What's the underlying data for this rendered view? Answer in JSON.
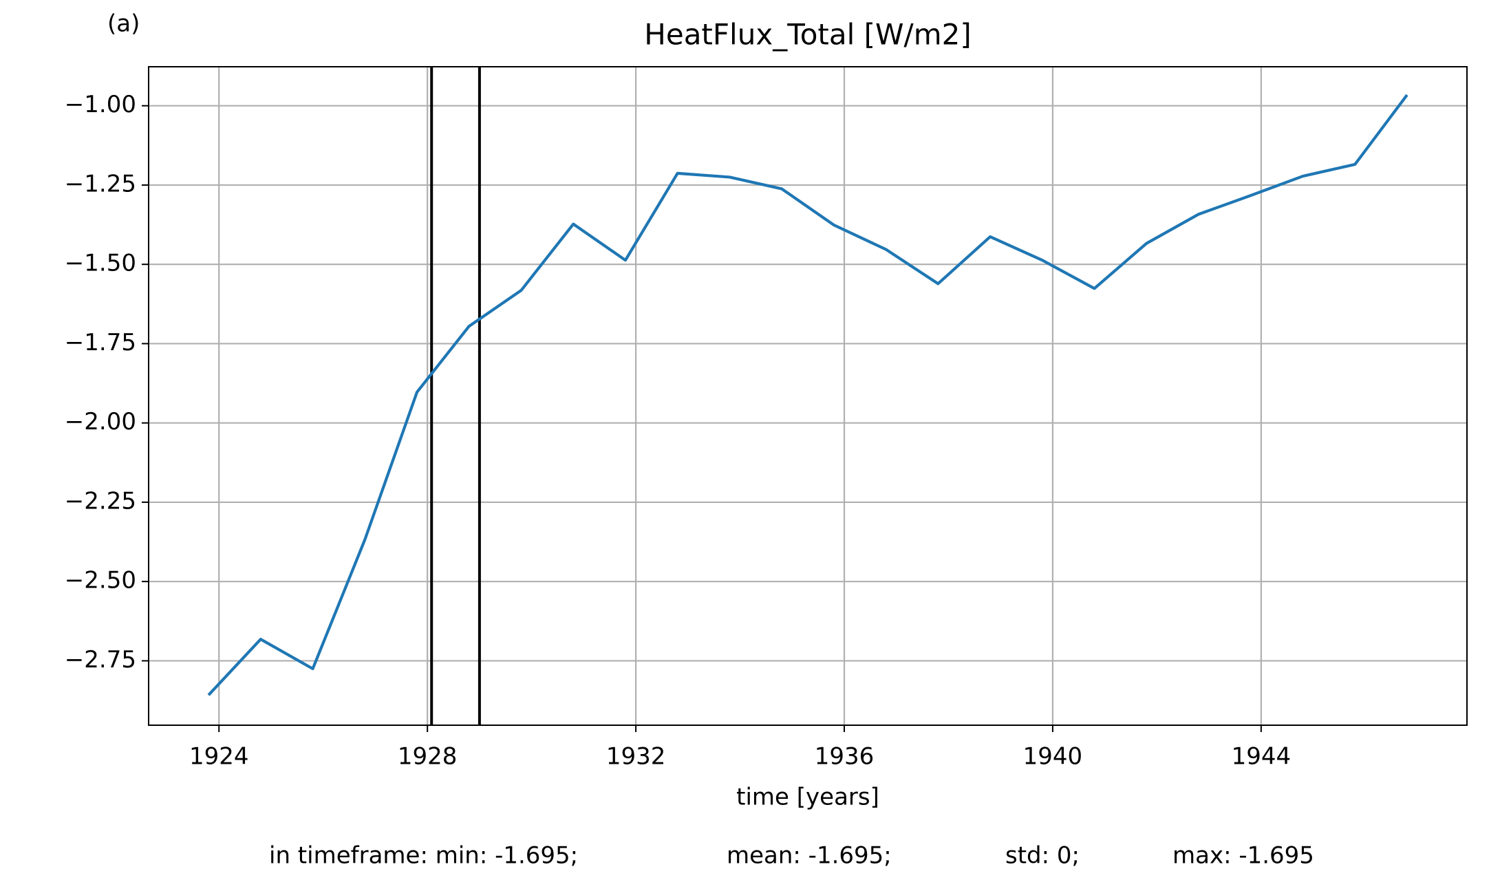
{
  "chart_data": {
    "type": "line",
    "title": "HeatFlux_Total [W/m2]",
    "panel_label": "(a)",
    "xlabel": "time [years]",
    "x": [
      1923.8,
      1924.8,
      1925.8,
      1926.8,
      1927.8,
      1928.8,
      1929.8,
      1930.8,
      1931.8,
      1932.8,
      1933.8,
      1934.8,
      1935.8,
      1936.8,
      1937.8,
      1938.8,
      1939.8,
      1940.8,
      1941.8,
      1942.8,
      1943.8,
      1944.8,
      1945.8,
      1946.8
    ],
    "series": [
      {
        "color": "#1f77b4",
        "values": [
          -2.858,
          -2.682,
          -2.775,
          -2.368,
          -1.903,
          -1.695,
          -1.582,
          -1.373,
          -1.487,
          -1.213,
          -1.225,
          -1.262,
          -1.376,
          -1.453,
          -1.561,
          -1.413,
          -1.487,
          -1.576,
          -1.434,
          -1.342,
          -1.283,
          -1.222,
          -1.185,
          -0.966
        ]
      }
    ],
    "vlines": [
      1928.08,
      1929.0
    ],
    "vline_color": "#000000",
    "xlim": [
      1922.65,
      1947.95
    ],
    "xticks": [
      1924,
      1928,
      1932,
      1936,
      1940,
      1944
    ],
    "ylim": [
      -2.953,
      -0.877
    ],
    "yticks": [
      {
        "value": -1.0,
        "label": "−1.00"
      },
      {
        "value": -1.25,
        "label": "−1.25"
      },
      {
        "value": -1.5,
        "label": "−1.50"
      },
      {
        "value": -1.75,
        "label": "−1.75"
      },
      {
        "value": -2.0,
        "label": "−2.00"
      },
      {
        "value": -2.25,
        "label": "−2.25"
      },
      {
        "value": -2.5,
        "label": "−2.50"
      },
      {
        "value": -2.75,
        "label": "−2.75"
      }
    ],
    "grid": true,
    "footer": [
      "in timeframe: min: -1.695;",
      "mean: -1.695;",
      "std: 0;",
      "max: -1.695"
    ]
  }
}
